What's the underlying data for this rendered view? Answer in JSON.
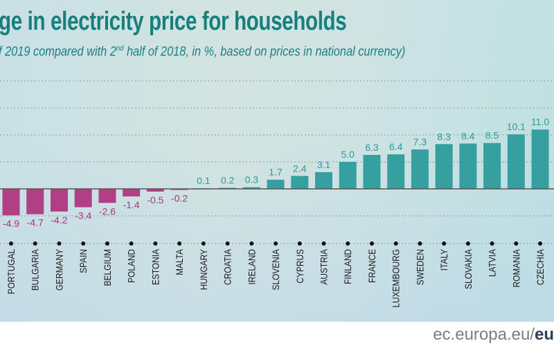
{
  "chart_data": {
    "type": "bar",
    "title": "ge in electricity price for households",
    "subtitle_parts": [
      "f 2019 compared with 2",
      "nd",
      " half of 2018, in %, based on prices in national currency)"
    ],
    "categories": [
      "PORTUGAL",
      "BULGARIA",
      "GERMANY",
      "SPAIN",
      "BELGIUM",
      "POLAND",
      "ESTONIA",
      "MALTA",
      "HUNGARY",
      "CROATIA",
      "IRELAND",
      "SLOVENIA",
      "CYPRUS",
      "AUSTRIA",
      "FINLAND",
      "FRANCE",
      "LUXEMBOURG",
      "SWEDEN",
      "ITALY",
      "SLOVAKIA",
      "LATVIA",
      "ROMANIA",
      "CZECHIA"
    ],
    "values": [
      -4.9,
      -4.7,
      -4.2,
      -3.4,
      -2.6,
      -1.4,
      -0.5,
      -0.2,
      0.1,
      0.2,
      0.3,
      1.7,
      2.4,
      3.1,
      5.0,
      6.3,
      6.4,
      7.3,
      8.3,
      8.4,
      8.5,
      10.1,
      11.0
    ],
    "value_labels": [
      "-4.9",
      "-4.7",
      "-4.2",
      "-3.4",
      "-2.6",
      "-1.4",
      "-0.5",
      "-0.2",
      "0.1",
      "0.2",
      "0.3",
      "1.7",
      "2.4",
      "3.1",
      "5.0",
      "6.3",
      "6.4",
      "7.3",
      "8.3",
      "8.4",
      "8.5",
      "10.1",
      "11.0"
    ],
    "gridlines": [
      20,
      15,
      10,
      5,
      -5
    ],
    "ylim": [
      -10,
      20
    ],
    "grid": true,
    "colors": {
      "positive": "#36a0a0",
      "negative": "#b23e85",
      "positive_label": "#2a9a9a",
      "negative_label": "#a8367c"
    }
  },
  "footer": {
    "text": "ec.europa.eu/",
    "bold": "eu"
  }
}
